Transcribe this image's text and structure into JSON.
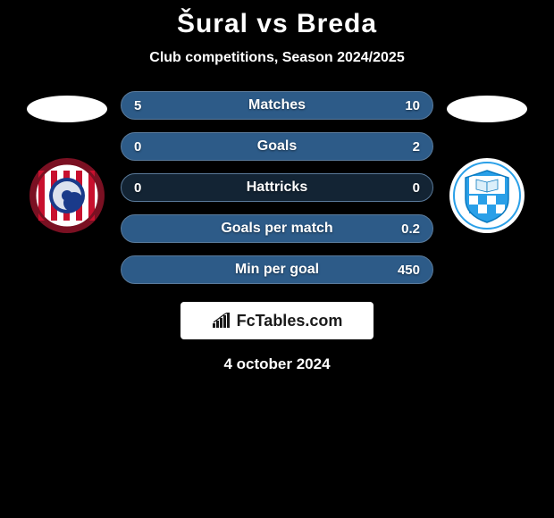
{
  "title": "Šural vs Breda",
  "subtitle": "Club competitions, Season 2024/2025",
  "date": "4 october 2024",
  "branding_text": "FcTables.com",
  "colors": {
    "pill_border": "#5a7a9a",
    "pill_bg": "#132434",
    "pill_fill_left": "#2d5b88",
    "pill_fill_right": "#2d5b88",
    "text": "#ffffff"
  },
  "left_crest": {
    "outer": "#7a1022",
    "inner": "#ffffff",
    "swirl": "#1a3a8a",
    "stripe_a": "#c8102e",
    "stripe_b": "#ffffff"
  },
  "right_crest": {
    "outer": "#ffffff",
    "inner": "#2aa0e8",
    "accent": "#ffffff",
    "checker_a": "#2aa0e8",
    "checker_b": "#ffffff"
  },
  "stats": [
    {
      "label": "Matches",
      "left_val": "5",
      "right_val": "10",
      "left_pct": 33,
      "right_pct": 67
    },
    {
      "label": "Goals",
      "left_val": "0",
      "right_val": "2",
      "left_pct": 0,
      "right_pct": 100
    },
    {
      "label": "Hattricks",
      "left_val": "0",
      "right_val": "0",
      "left_pct": 0,
      "right_pct": 0
    },
    {
      "label": "Goals per match",
      "left_val": "",
      "right_val": "0.2",
      "left_pct": 0,
      "right_pct": 100
    },
    {
      "label": "Min per goal",
      "left_val": "",
      "right_val": "450",
      "left_pct": 0,
      "right_pct": 100
    }
  ]
}
